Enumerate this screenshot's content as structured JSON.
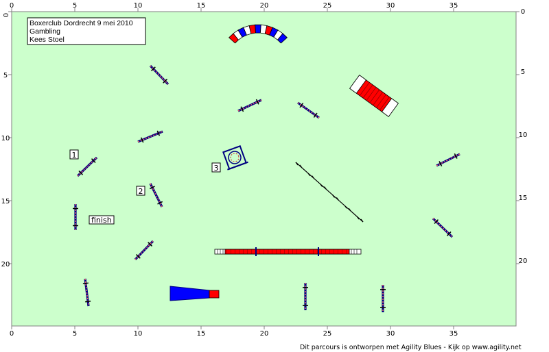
{
  "info": {
    "line1": "Boxerclub Dordrecht 9 mei 2010",
    "line2": "Gambling",
    "line3": "Kees Stoel"
  },
  "axes": {
    "x_ticks": [
      "0",
      "5",
      "10",
      "15",
      "20",
      "25",
      "30",
      "35"
    ],
    "y_ticks": [
      "0",
      "5",
      "10",
      "15",
      "20"
    ]
  },
  "number_labels": [
    "1",
    "2",
    "3"
  ],
  "finish_label": "finish",
  "footer": "Dit parcours is ontworpen met Agility Blues - Kijk op www.agility.net",
  "colors": {
    "field": "#ccffcc",
    "red": "#ff0000",
    "blue": "#0000ff",
    "navy": "#000080",
    "jump_bar": "#cc3333"
  }
}
